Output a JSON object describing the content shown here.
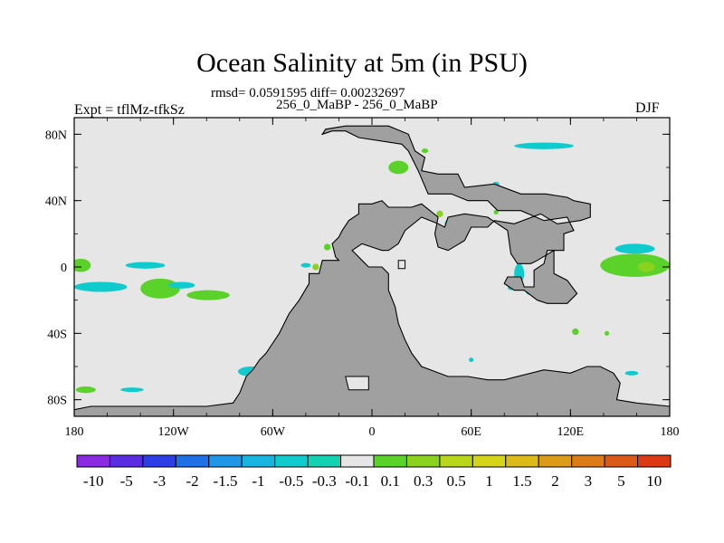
{
  "chart_data": {
    "type": "heatmap",
    "title": "Ocean Salinity at 5m (in PSU)",
    "subtitle": "rmsd= 0.0591595 diff= 0.00232697",
    "center_label": "256_0_MaBP - 256_0_MaBP",
    "left_label": "Expt = tflMz-tfkSz",
    "right_label": "DJF",
    "x_axis": {
      "range": [
        -180,
        180
      ],
      "ticks": [
        -180,
        -120,
        -60,
        0,
        60,
        120,
        180
      ],
      "tick_labels": [
        "180",
        "120W",
        "60W",
        "0",
        "60E",
        "120E",
        "180"
      ]
    },
    "y_axis": {
      "range": [
        -90,
        90
      ],
      "ticks": [
        80,
        40,
        0,
        -40,
        -80
      ],
      "tick_labels": [
        "80N",
        "40N",
        "0",
        "40S",
        "80S"
      ]
    },
    "land_color": "#a0a0a0",
    "ocean_color": "#e6e6e6",
    "colorbar": {
      "colors": [
        "#8a2be2",
        "#5a2ee0",
        "#2e3ee6",
        "#1f6fe6",
        "#1f97e6",
        "#18b5e0",
        "#10cbcd",
        "#12d2b2",
        "#e6e6e6",
        "#5ad22a",
        "#8ad21e",
        "#b8d61a",
        "#d4d418",
        "#dcba18",
        "#dc9c18",
        "#dc7c18",
        "#dc5a18",
        "#dc3a14"
      ],
      "labels": [
        "-10",
        "-5",
        "-3",
        "-2",
        "-1.5",
        "-1",
        "-0.5",
        "-0.3",
        "-0.1",
        "0.1",
        "0.3",
        "0.5",
        "1",
        "1.5",
        "2",
        "3",
        "5",
        "10"
      ]
    },
    "land_polygons": [
      [
        [
          -30,
          80
        ],
        [
          -28,
          83
        ],
        [
          -16,
          85
        ],
        [
          10,
          85
        ],
        [
          22,
          80
        ],
        [
          26,
          70
        ],
        [
          32,
          66
        ],
        [
          30,
          58
        ],
        [
          40,
          56
        ],
        [
          52,
          56
        ],
        [
          56,
          48
        ],
        [
          74,
          50
        ],
        [
          90,
          44
        ],
        [
          105,
          44
        ],
        [
          118,
          42
        ],
        [
          122,
          40
        ],
        [
          132,
          38
        ],
        [
          132,
          30
        ],
        [
          126,
          28
        ],
        [
          112,
          26
        ],
        [
          102,
          32
        ],
        [
          86,
          26
        ],
        [
          74,
          28
        ],
        [
          70,
          24
        ],
        [
          60,
          24
        ],
        [
          56,
          16
        ],
        [
          46,
          10
        ],
        [
          40,
          12
        ],
        [
          38,
          20
        ],
        [
          40,
          30
        ],
        [
          30,
          38
        ],
        [
          24,
          36
        ],
        [
          10,
          36
        ],
        [
          6,
          40
        ],
        [
          0,
          38
        ],
        [
          -8,
          38
        ],
        [
          -8,
          32
        ],
        [
          -14,
          28
        ],
        [
          -18,
          22
        ],
        [
          -20,
          18
        ],
        [
          -24,
          14
        ],
        [
          -22,
          6
        ],
        [
          -20,
          4
        ],
        [
          -30,
          4
        ],
        [
          -32,
          -4
        ],
        [
          -38,
          -4
        ],
        [
          -38,
          -10
        ],
        [
          -44,
          -20
        ],
        [
          -50,
          -28
        ],
        [
          -56,
          -40
        ],
        [
          -60,
          -46
        ],
        [
          -64,
          -52
        ],
        [
          -68,
          -56
        ],
        [
          -72,
          -62
        ],
        [
          -76,
          -66
        ],
        [
          -80,
          -76
        ],
        [
          -84,
          -82
        ],
        [
          -100,
          -84
        ],
        [
          -140,
          -84
        ],
        [
          -170,
          -84
        ],
        [
          -180,
          -86
        ],
        [
          -180,
          -90
        ],
        [
          180,
          -90
        ],
        [
          180,
          -84
        ],
        [
          160,
          -82
        ],
        [
          148,
          -80
        ],
        [
          150,
          -70
        ],
        [
          146,
          -64
        ],
        [
          138,
          -60
        ],
        [
          130,
          -60
        ],
        [
          120,
          -64
        ],
        [
          104,
          -62
        ],
        [
          80,
          -68
        ],
        [
          70,
          -68
        ],
        [
          58,
          -66
        ],
        [
          46,
          -66
        ],
        [
          30,
          -60
        ],
        [
          24,
          -52
        ],
        [
          20,
          -44
        ],
        [
          16,
          -34
        ],
        [
          14,
          -24
        ],
        [
          10,
          -14
        ],
        [
          10,
          -4
        ],
        [
          6,
          0
        ],
        [
          -2,
          0
        ],
        [
          -6,
          4
        ],
        [
          -10,
          8
        ],
        [
          -12,
          10
        ],
        [
          -6,
          14
        ],
        [
          0,
          12
        ],
        [
          6,
          10
        ],
        [
          10,
          10
        ],
        [
          16,
          14
        ],
        [
          20,
          22
        ],
        [
          30,
          30
        ],
        [
          40,
          26
        ],
        [
          44,
          24
        ],
        [
          46,
          30
        ],
        [
          56,
          32
        ],
        [
          70,
          30
        ],
        [
          82,
          22
        ],
        [
          84,
          8
        ],
        [
          88,
          2
        ],
        [
          96,
          2
        ],
        [
          100,
          4
        ],
        [
          110,
          10
        ],
        [
          110,
          -4
        ],
        [
          118,
          -8
        ],
        [
          124,
          -16
        ],
        [
          118,
          -22
        ],
        [
          106,
          -22
        ],
        [
          100,
          -20
        ],
        [
          92,
          -14
        ],
        [
          86,
          -14
        ],
        [
          80,
          -10
        ],
        [
          82,
          -6
        ],
        [
          90,
          -6
        ],
        [
          92,
          -12
        ],
        [
          98,
          -12
        ],
        [
          98,
          -2
        ],
        [
          104,
          2
        ],
        [
          106,
          10
        ],
        [
          110,
          10
        ],
        [
          116,
          10
        ],
        [
          116,
          20
        ],
        [
          122,
          22
        ],
        [
          118,
          30
        ],
        [
          104,
          28
        ],
        [
          90,
          34
        ],
        [
          76,
          34
        ],
        [
          70,
          40
        ],
        [
          58,
          40
        ],
        [
          48,
          44
        ],
        [
          34,
          44
        ],
        [
          28,
          58
        ],
        [
          22,
          70
        ],
        [
          18,
          74
        ],
        [
          -8,
          78
        ],
        [
          -16,
          82
        ],
        [
          -24,
          82
        ],
        [
          -30,
          80
        ]
      ]
    ],
    "anomaly_patches": [
      {
        "lon": -176,
        "lat": 1,
        "rlon": 6,
        "rlat": 4,
        "color": "#5ad22a"
      },
      {
        "lon": -137,
        "lat": 1,
        "rlon": 12,
        "rlat": 2,
        "color": "#10cbcd"
      },
      {
        "lon": -164,
        "lat": -12,
        "rlon": 16,
        "rlat": 3,
        "color": "#10cbcd"
      },
      {
        "lon": -128,
        "lat": -13,
        "rlon": 12,
        "rlat": 6,
        "color": "#5ad22a"
      },
      {
        "lon": -115,
        "lat": -11,
        "rlon": 8,
        "rlat": 2,
        "color": "#10cbcd"
      },
      {
        "lon": -99,
        "lat": -17,
        "rlon": 13,
        "rlat": 3,
        "color": "#5ad22a"
      },
      {
        "lon": 159,
        "lat": 1,
        "rlon": 21,
        "rlat": 7,
        "color": "#5ad22a"
      },
      {
        "lon": 166,
        "lat": 0,
        "rlon": 5,
        "rlat": 3,
        "color": "#8ad21e"
      },
      {
        "lon": 159,
        "lat": 11,
        "rlon": 12,
        "rlat": 3,
        "color": "#10cbcd"
      },
      {
        "lon": 104,
        "lat": 73,
        "rlon": 18,
        "rlat": 2,
        "color": "#10cbcd"
      },
      {
        "lon": 16,
        "lat": 60,
        "rlon": 6,
        "rlat": 4,
        "color": "#5ad22a"
      },
      {
        "lon": 32,
        "lat": 70,
        "rlon": 2,
        "rlat": 1,
        "color": "#5ad22a"
      },
      {
        "lon": 41,
        "lat": 32,
        "rlon": 2,
        "rlat": 2,
        "color": "#8ad21e"
      },
      {
        "lon": 47,
        "lat": 26,
        "rlon": 3,
        "rlat": 3,
        "color": "#10cbcd"
      },
      {
        "lon": 92,
        "lat": 12,
        "rlon": 2,
        "rlat": 1,
        "color": "#10cbcd"
      },
      {
        "lon": 89,
        "lat": -4,
        "rlon": 3,
        "rlat": 6,
        "color": "#10cbcd"
      },
      {
        "lon": 84,
        "lat": -12,
        "rlon": 2,
        "rlat": 2,
        "color": "#10cbcd"
      },
      {
        "lon": 96,
        "lat": -15,
        "rlon": 3,
        "rlat": 2,
        "color": "#10cbcd"
      },
      {
        "lon": -27,
        "lat": 12,
        "rlon": 2,
        "rlat": 2,
        "color": "#5ad22a"
      },
      {
        "lon": -40,
        "lat": 1,
        "rlon": 3,
        "rlat": 1,
        "color": "#10cbcd"
      },
      {
        "lon": -34,
        "lat": 0,
        "rlon": 2,
        "rlat": 2,
        "color": "#8ad21e"
      },
      {
        "lon": -61,
        "lat": -52,
        "rlon": 2,
        "rlat": 2,
        "color": "#10cbcd"
      },
      {
        "lon": -73,
        "lat": -63,
        "rlon": 8,
        "rlat": 3,
        "color": "#10cbcd"
      },
      {
        "lon": -71,
        "lat": -68,
        "rlon": 5,
        "rlat": 3,
        "color": "#5ad22a"
      },
      {
        "lon": -145,
        "lat": -74,
        "rlon": 7,
        "rlat": 1,
        "color": "#10cbcd"
      },
      {
        "lon": -173,
        "lat": -74,
        "rlon": 6,
        "rlat": 2,
        "color": "#5ad22a"
      },
      {
        "lon": 123,
        "lat": -39,
        "rlon": 2,
        "rlat": 2,
        "color": "#5ad22a"
      },
      {
        "lon": 142,
        "lat": -40,
        "rlon": 1,
        "rlat": 1,
        "color": "#5ad22a"
      },
      {
        "lon": 157,
        "lat": -64,
        "rlon": 4,
        "rlat": 1,
        "color": "#10cbcd"
      },
      {
        "lon": 75,
        "lat": 50,
        "rlon": 2,
        "rlat": 1,
        "color": "#10cbcd"
      },
      {
        "lon": 75,
        "lat": 33,
        "rlon": 1,
        "rlat": 1,
        "color": "#5ad22a"
      },
      {
        "lon": 60,
        "lat": -56,
        "rlon": 1,
        "rlat": 1,
        "color": "#10cbcd"
      }
    ]
  }
}
